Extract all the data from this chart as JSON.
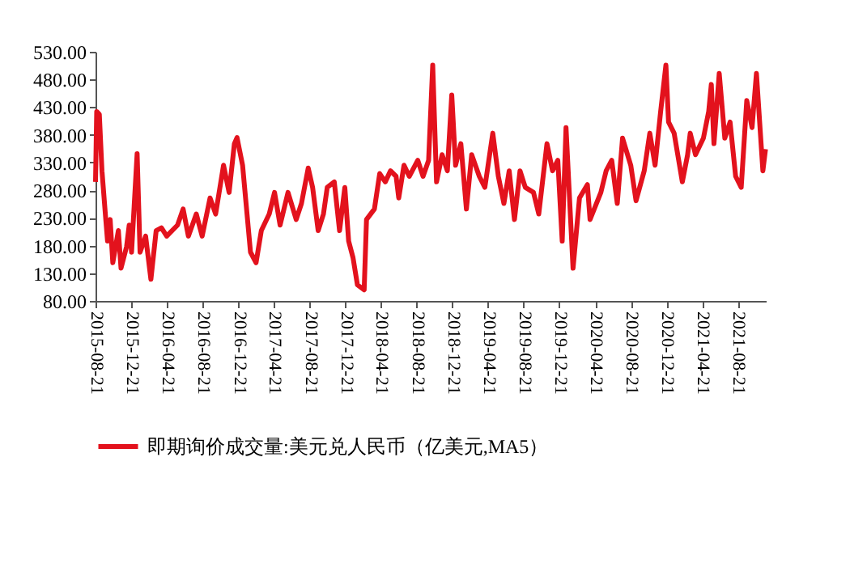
{
  "chart_data": {
    "type": "line",
    "legend": "bottom",
    "marker": "none",
    "line_style": "solid",
    "grid": false,
    "xlim": [
      "2015-08-21",
      "2021-11-25"
    ],
    "xticks": [
      "2015-08-21",
      "2015-12-21",
      "2016-04-21",
      "2016-08-21",
      "2016-12-21",
      "2017-04-21",
      "2017-08-21",
      "2017-12-21",
      "2018-04-21",
      "2018-08-21",
      "2018-12-21",
      "2019-04-21",
      "2019-08-21",
      "2019-12-21",
      "2020-04-21",
      "2020-08-21",
      "2020-12-21",
      "2021-04-21",
      "2021-08-21"
    ],
    "ylim": [
      80,
      530
    ],
    "yticks": [
      {
        "value": 80,
        "label": "80.00"
      },
      {
        "value": 130,
        "label": "130.00"
      },
      {
        "value": 180,
        "label": "180.00"
      },
      {
        "value": 230,
        "label": "230.00"
      },
      {
        "value": 280,
        "label": "280.00"
      },
      {
        "value": 330,
        "label": "330.00"
      },
      {
        "value": 380,
        "label": "380.00"
      },
      {
        "value": 430,
        "label": "430.00"
      },
      {
        "value": 480,
        "label": "480.00"
      },
      {
        "value": 530,
        "label": "530.00"
      }
    ],
    "x": [
      "2015-08-21",
      "2015-08-25",
      "2015-09-03",
      "2015-09-12",
      "2015-09-25",
      "2015-10-01",
      "2015-10-10",
      "2015-10-19",
      "2015-11-07",
      "2015-11-16",
      "2015-12-05",
      "2015-12-14",
      "2015-12-22",
      "2016-01-10",
      "2016-01-20",
      "2016-02-08",
      "2016-02-26",
      "2016-03-15",
      "2016-04-02",
      "2016-04-20",
      "2016-05-27",
      "2016-06-15",
      "2016-07-03",
      "2016-07-30",
      "2016-08-19",
      "2016-09-15",
      "2016-10-04",
      "2016-10-31",
      "2016-11-19",
      "2016-12-07",
      "2016-12-16",
      "2017-01-04",
      "2017-01-31",
      "2017-02-19",
      "2017-03-09",
      "2017-04-05",
      "2017-04-23",
      "2017-05-12",
      "2017-06-08",
      "2017-07-06",
      "2017-07-24",
      "2017-08-16",
      "2017-08-31",
      "2017-09-19",
      "2017-10-07",
      "2017-10-20",
      "2017-11-13",
      "2017-12-01",
      "2017-12-19",
      "2018-01-01",
      "2018-01-16",
      "2018-01-31",
      "2018-02-23",
      "2018-03-03",
      "2018-03-30",
      "2018-04-17",
      "2018-05-06",
      "2018-05-24",
      "2018-06-12",
      "2018-06-21",
      "2018-07-09",
      "2018-07-27",
      "2018-08-25",
      "2018-09-12",
      "2018-10-01",
      "2018-10-15",
      "2018-10-28",
      "2018-11-16",
      "2018-12-04",
      "2018-12-19",
      "2019-01-01",
      "2019-01-19",
      "2019-02-07",
      "2019-02-25",
      "2019-03-23",
      "2019-04-11",
      "2019-05-08",
      "2019-05-27",
      "2019-06-15",
      "2019-07-03",
      "2019-07-21",
      "2019-08-09",
      "2019-08-27",
      "2019-09-24",
      "2019-10-12",
      "2019-11-09",
      "2019-11-28",
      "2019-12-16",
      "2019-12-31",
      "2020-01-13",
      "2020-02-06",
      "2020-02-28",
      "2020-03-26",
      "2020-04-04",
      "2020-05-11",
      "2020-05-29",
      "2020-06-17",
      "2020-07-06",
      "2020-07-24",
      "2020-08-21",
      "2020-09-08",
      "2020-10-06",
      "2020-10-25",
      "2020-11-12",
      "2020-12-01",
      "2020-12-19",
      "2020-12-28",
      "2021-01-16",
      "2021-02-13",
      "2021-03-03",
      "2021-03-12",
      "2021-03-30",
      "2021-04-26",
      "2021-05-14",
      "2021-05-23",
      "2021-06-01",
      "2021-06-19",
      "2021-07-08",
      "2021-07-26",
      "2021-08-14",
      "2021-09-02",
      "2021-09-21",
      "2021-10-09",
      "2021-10-24",
      "2021-11-15",
      "2021-11-24"
    ],
    "series": [
      {
        "name": "即期询价成交量:美元兑人民币（亿美元,MA5）",
        "color": "#e3121d",
        "values": [
          295,
          422,
          417,
          315,
          227,
          188,
          227,
          149,
          207,
          139,
          178,
          217,
          168,
          346,
          168,
          197,
          119,
          207,
          212,
          197,
          217,
          246,
          197,
          237,
          197,
          266,
          237,
          325,
          276,
          364,
          375,
          325,
          168,
          149,
          207,
          237,
          276,
          217,
          276,
          227,
          256,
          320,
          285,
          207,
          237,
          285,
          295,
          207,
          285,
          188,
          158,
          109,
          100,
          227,
          246,
          310,
          295,
          315,
          305,
          266,
          325,
          305,
          334,
          305,
          334,
          506,
          295,
          344,
          315,
          452,
          325,
          364,
          246,
          344,
          305,
          285,
          383,
          305,
          256,
          315,
          227,
          315,
          285,
          276,
          237,
          364,
          315,
          334,
          188,
          393,
          139,
          266,
          290,
          227,
          276,
          315,
          334,
          256,
          374,
          325,
          261,
          315,
          383,
          325,
          422,
          506,
          403,
          383,
          295,
          344,
          383,
          344,
          374,
          422,
          471,
          364,
          491,
          374,
          403,
          305,
          285,
          442,
          393,
          491,
          315,
          354
        ]
      }
    ]
  }
}
